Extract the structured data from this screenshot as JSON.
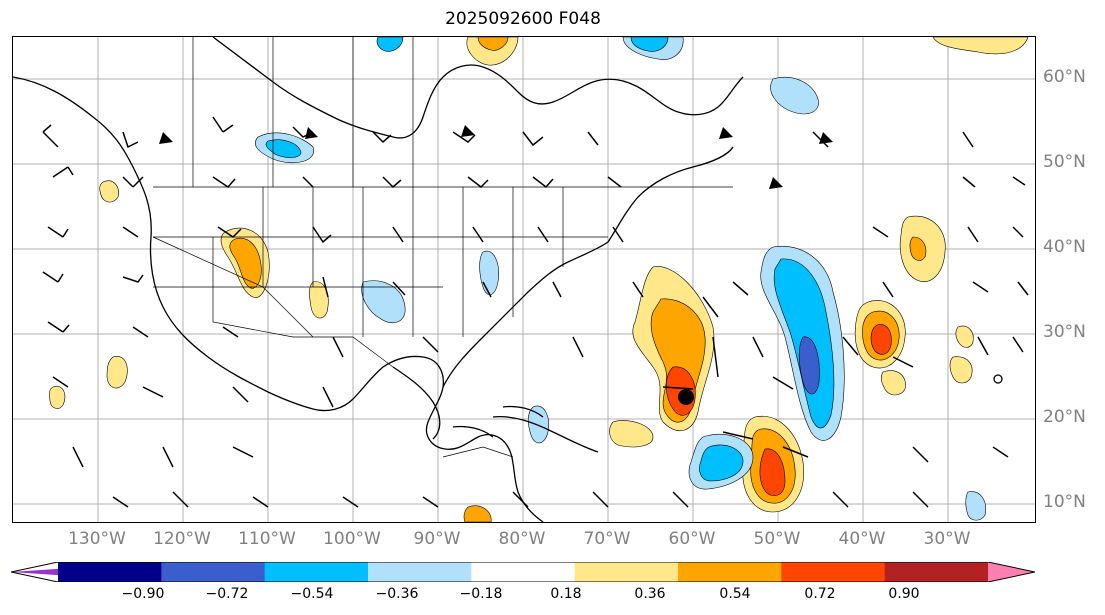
{
  "title": "2025092600 F048",
  "longitude_labels": [
    "130°W",
    "120°W",
    "110°W",
    "100°W",
    "90°W",
    "80°W",
    "70°W",
    "60°W",
    "50°W",
    "40°W",
    "30°W"
  ],
  "latitude_labels": [
    "60°N",
    "50°N",
    "40°N",
    "30°N",
    "20°N",
    "10°N"
  ],
  "colorbar": {
    "ticks": [
      "−0.90",
      "−0.72",
      "−0.54",
      "−0.36",
      "−0.18",
      "0.18",
      "0.36",
      "0.54",
      "0.72",
      "0.90"
    ],
    "colors": [
      "#9932cc",
      "#00008b",
      "#3a5fcd",
      "#00bfff",
      "#b0e0fa",
      "#ffffff",
      "#ffe78a",
      "#ffa500",
      "#ff4500",
      "#b22222",
      "#ff80b0"
    ]
  },
  "storm_marker": {
    "lon": "60°W",
    "lat": "23°N"
  }
}
